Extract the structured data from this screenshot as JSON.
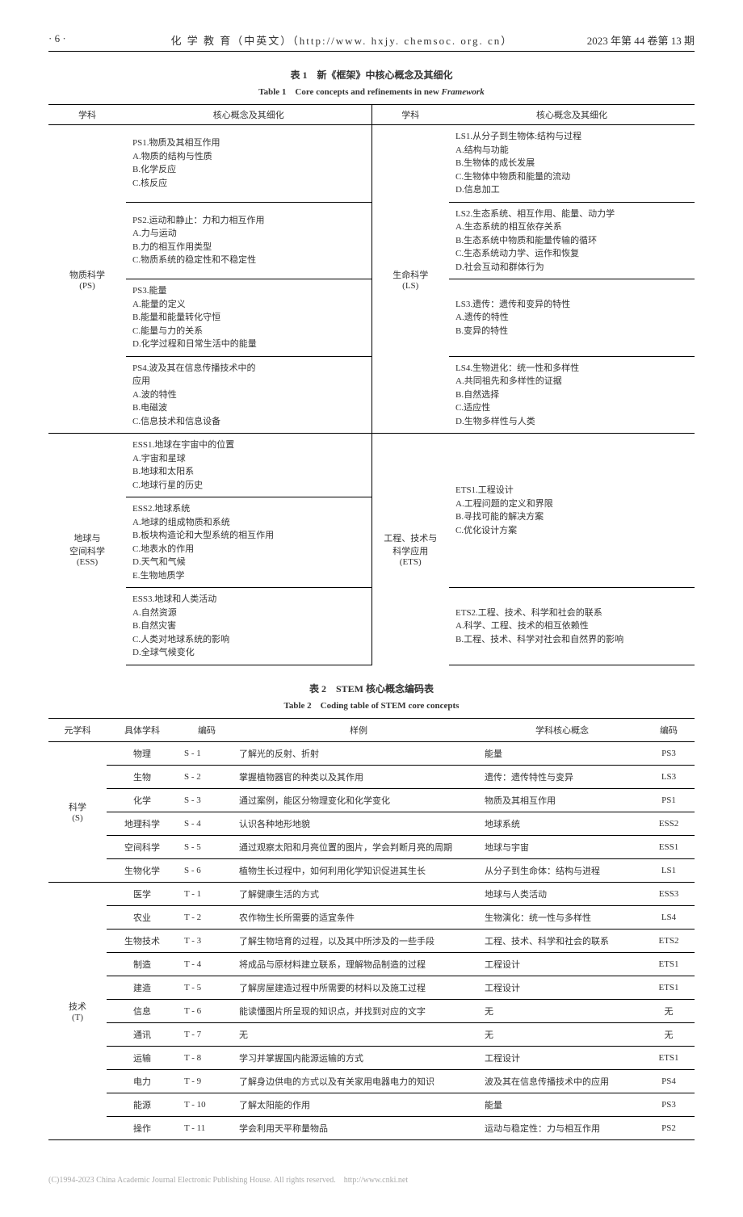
{
  "header": {
    "page": "· 6 ·",
    "center": "化 学 教 育（中英文）（http://www. hxjy. chemsoc. org. cn）",
    "right": "2023 年第 44 卷第 13 期"
  },
  "table1": {
    "title_cn": "表 1　新《框架》中核心概念及其细化",
    "title_en_prefix": "Table 1　Core concepts and refinements in new ",
    "title_en_italic": "Framework",
    "headers": {
      "col1": "学科",
      "col2": "核心概念及其细化",
      "col3": "学科",
      "col4": "核心概念及其细化"
    },
    "sections": [
      {
        "left_discipline": "物质科学\n(PS)",
        "right_discipline": "生命科学\n(LS)",
        "rows": [
          {
            "left": "PS1.物质及其相互作用\nA.物质的结构与性质\nB.化学反应\nC.核反应",
            "right": "LS1.从分子到生物体:结构与过程\nA.结构与功能\nB.生物体的成长发展\nC.生物体中物质和能量的流动\nD.信息加工"
          },
          {
            "left": "PS2.运动和静止：力和力相互作用\nA.力与运动\nB.力的相互作用类型\nC.物质系统的稳定性和不稳定性",
            "right": "LS2.生态系统、相互作用、能量、动力学\nA.生态系统的相互依存关系\nB.生态系统中物质和能量传输的循环\nC.生态系统动力学、运作和恢复\nD.社会互动和群体行为"
          },
          {
            "left": "PS3.能量\nA.能量的定义\nB.能量和能量转化守恒\nC.能量与力的关系\nD.化学过程和日常生活中的能量",
            "right": "LS3.遗传：遗传和变异的特性\nA.遗传的特性\nB.变异的特性"
          },
          {
            "left": "PS4.波及其在信息传播技术中的\n应用\nA.波的特性\nB.电磁波\nC.信息技术和信息设备",
            "right": "LS4.生物进化：统一性和多样性\nA.共同祖先和多样性的证据\nB.自然选择\nC.适应性\nD.生物多样性与人类"
          }
        ]
      },
      {
        "left_discipline": "地球与\n空间科学\n(ESS)",
        "right_discipline": "工程、技术与\n科学应用\n(ETS)",
        "rows": [
          {
            "left": "ESS1.地球在宇宙中的位置\nA.宇宙和星球\nB.地球和太阳系\nC.地球行星的历史",
            "right": "ETS1.工程设计\nA.工程问题的定义和界限\nB.寻找可能的解决方案\nC.优化设计方案",
            "right_rowspan": 2,
            "right_valign": "middle"
          },
          {
            "left": "ESS2.地球系统\nA.地球的组成物质和系统\nB.板块构造论和大型系统的相互作用\nC.地表水的作用\nD.天气和气候\nE.生物地质学"
          },
          {
            "left": "ESS3.地球和人类活动\nA.自然资源\nB.自然灾害\nC.人类对地球系统的影响\nD.全球气候变化",
            "right": "ETS2.工程、技术、科学和社会的联系\nA.科学、工程、技术的相互依赖性\nB.工程、技术、科学对社会和自然界的影响"
          }
        ]
      }
    ]
  },
  "table2": {
    "title_cn": "表 2　STEM 核心概念编码表",
    "title_en": "Table 2　Coding table of STEM core concepts",
    "headers": {
      "c1": "元学科",
      "c2": "具体学科",
      "c3": "编码",
      "c4": "样例",
      "c5": "学科核心概念",
      "c6": "编码"
    },
    "groups": [
      {
        "meta": "科学\n(S)",
        "rows": [
          {
            "subj": "物理",
            "code": "S - 1",
            "sample": "了解光的反射、折射",
            "concept": "能量",
            "ccode": "PS3"
          },
          {
            "subj": "生物",
            "code": "S - 2",
            "sample": "掌握植物器官的种类以及其作用",
            "concept": "遗传：遗传特性与变异",
            "ccode": "LS3"
          },
          {
            "subj": "化学",
            "code": "S - 3",
            "sample": "通过案例，能区分物理变化和化学变化",
            "concept": "物质及其相互作用",
            "ccode": "PS1"
          },
          {
            "subj": "地理科学",
            "code": "S - 4",
            "sample": "认识各种地形地貌",
            "concept": "地球系统",
            "ccode": "ESS2"
          },
          {
            "subj": "空间科学",
            "code": "S - 5",
            "sample": "通过观察太阳和月亮位置的图片，学会判断月亮的周期",
            "concept": "地球与宇宙",
            "ccode": "ESS1"
          },
          {
            "subj": "生物化学",
            "code": "S - 6",
            "sample": "植物生长过程中，如何利用化学知识促进其生长",
            "concept": "从分子到生命体：结构与进程",
            "ccode": "LS1"
          }
        ]
      },
      {
        "meta": "技术\n(T)",
        "rows": [
          {
            "subj": "医学",
            "code": "T - 1",
            "sample": "了解健康生活的方式",
            "concept": "地球与人类活动",
            "ccode": "ESS3"
          },
          {
            "subj": "农业",
            "code": "T - 2",
            "sample": "农作物生长所需要的适宜条件",
            "concept": "生物演化：统一性与多样性",
            "ccode": "LS4"
          },
          {
            "subj": "生物技术",
            "code": "T - 3",
            "sample": "了解生物培育的过程，以及其中所涉及的一些手段",
            "concept": "工程、技术、科学和社会的联系",
            "ccode": "ETS2"
          },
          {
            "subj": "制造",
            "code": "T - 4",
            "sample": "将成品与原材料建立联系，理解物品制造的过程",
            "concept": "工程设计",
            "ccode": "ETS1"
          },
          {
            "subj": "建造",
            "code": "T - 5",
            "sample": "了解房屋建造过程中所需要的材料以及施工过程",
            "concept": "工程设计",
            "ccode": "ETS1"
          },
          {
            "subj": "信息",
            "code": "T - 6",
            "sample": "能读懂图片所呈现的知识点，并找到对应的文字",
            "concept": "无",
            "ccode": "无"
          },
          {
            "subj": "通讯",
            "code": "T - 7",
            "sample": "无",
            "concept": "无",
            "ccode": "无"
          },
          {
            "subj": "运输",
            "code": "T - 8",
            "sample": "学习并掌握国内能源运输的方式",
            "concept": "工程设计",
            "ccode": "ETS1"
          },
          {
            "subj": "电力",
            "code": "T - 9",
            "sample": "了解身边供电的方式以及有关家用电器电力的知识",
            "concept": "波及其在信息传播技术中的应用",
            "ccode": "PS4"
          },
          {
            "subj": "能源",
            "code": "T - 10",
            "sample": "了解太阳能的作用",
            "concept": "能量",
            "ccode": "PS3"
          },
          {
            "subj": "操作",
            "code": "T - 11",
            "sample": "学会利用天平称量物品",
            "concept": "运动与稳定性：力与相互作用",
            "ccode": "PS2"
          }
        ]
      }
    ]
  },
  "footer": "(C)1994-2023 China Academic Journal Electronic Publishing House. All rights reserved.　http://www.cnki.net"
}
